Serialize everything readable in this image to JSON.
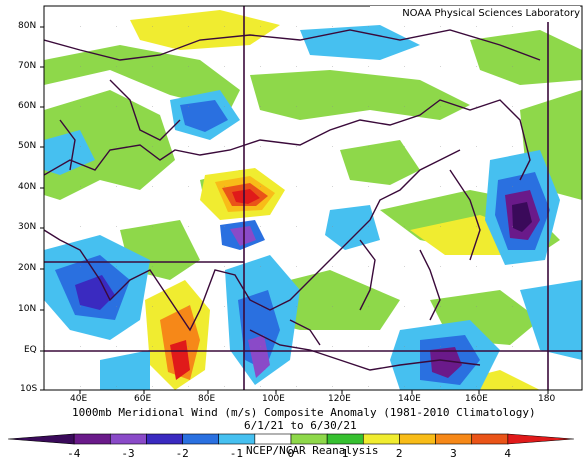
{
  "credit": "NOAA Physical Sciences Laboratory",
  "title": {
    "line1": "1000mb Meridional Wind (m/s) Composite Anomaly (1981-2010 Climatology)",
    "line2": "6/1/21 to 6/30/21",
    "line3": "NCEP/NCAR Reanalysis"
  },
  "lat_labels": [
    "80N",
    "70N",
    "60N",
    "50N",
    "40N",
    "30N",
    "20N",
    "10N",
    "EQ",
    "10S"
  ],
  "lon_labels": [
    "40E",
    "60E",
    "80E",
    "100E",
    "120E",
    "140E",
    "160E",
    "180"
  ],
  "colorbar": {
    "ticks": [
      "-4",
      "-3",
      "-2",
      "-1",
      "0",
      "1",
      "2",
      "3",
      "4"
    ],
    "colors": [
      "#3a0a5a",
      "#6a1a8a",
      "#8a4ac8",
      "#3a2ac0",
      "#2a70e0",
      "#46c0f0",
      "#ffffff",
      "#8ed84a",
      "#36c030",
      "#f0ec30",
      "#f8bc18",
      "#f68818",
      "#ea5418",
      "#e01a1a"
    ]
  }
}
